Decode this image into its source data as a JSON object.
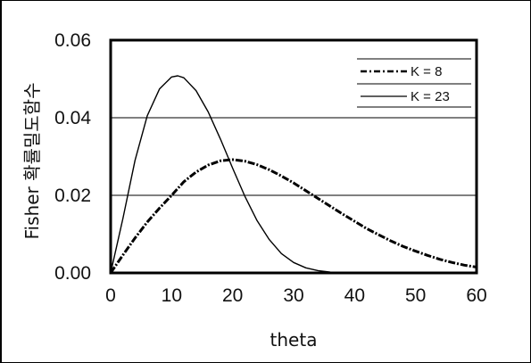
{
  "chart_data": {
    "type": "line",
    "title": "",
    "xlabel": "theta",
    "ylabel": "Fisher 확률밀도함수",
    "xlim": [
      0,
      60
    ],
    "ylim": [
      0,
      0.06
    ],
    "x_ticks": [
      "0",
      "10",
      "20",
      "30",
      "40",
      "50",
      "60"
    ],
    "y_ticks": [
      "0.00",
      "0.02",
      "0.04",
      "0.06"
    ],
    "grid": "horizontal",
    "legend_position": "top-right",
    "series": [
      {
        "name": "K = 8",
        "style": "dash-dot",
        "color": "#000000",
        "x": [
          0,
          2,
          4,
          6,
          8,
          10,
          12,
          14,
          16,
          18,
          20,
          22,
          24,
          26,
          28,
          30,
          32,
          34,
          36,
          38,
          40,
          42,
          44,
          46,
          48,
          50,
          52,
          54,
          56,
          58,
          60
        ],
        "y": [
          0.0,
          0.0046,
          0.009,
          0.0131,
          0.0167,
          0.02,
          0.0235,
          0.026,
          0.0278,
          0.0289,
          0.0292,
          0.0288,
          0.0279,
          0.0266,
          0.025,
          0.0232,
          0.0212,
          0.0192,
          0.0172,
          0.0152,
          0.0133,
          0.0114,
          0.0098,
          0.0082,
          0.0068,
          0.0056,
          0.0045,
          0.0035,
          0.0027,
          0.002,
          0.0015
        ]
      },
      {
        "name": "K = 23",
        "style": "solid",
        "color": "#000000",
        "x": [
          0,
          2,
          4,
          6,
          8,
          10,
          11,
          12,
          14,
          16,
          18,
          20,
          22,
          24,
          26,
          28,
          30,
          32,
          34,
          36,
          38,
          40,
          42,
          44,
          46
        ],
        "y": [
          0.0,
          0.014,
          0.029,
          0.0405,
          0.0474,
          0.0505,
          0.0508,
          0.0503,
          0.047,
          0.0415,
          0.0345,
          0.027,
          0.0198,
          0.0135,
          0.0086,
          0.005,
          0.0027,
          0.0013,
          0.0006,
          0.0002,
          0.0001,
          0.0,
          0.0,
          0.0,
          0.0
        ]
      }
    ]
  }
}
